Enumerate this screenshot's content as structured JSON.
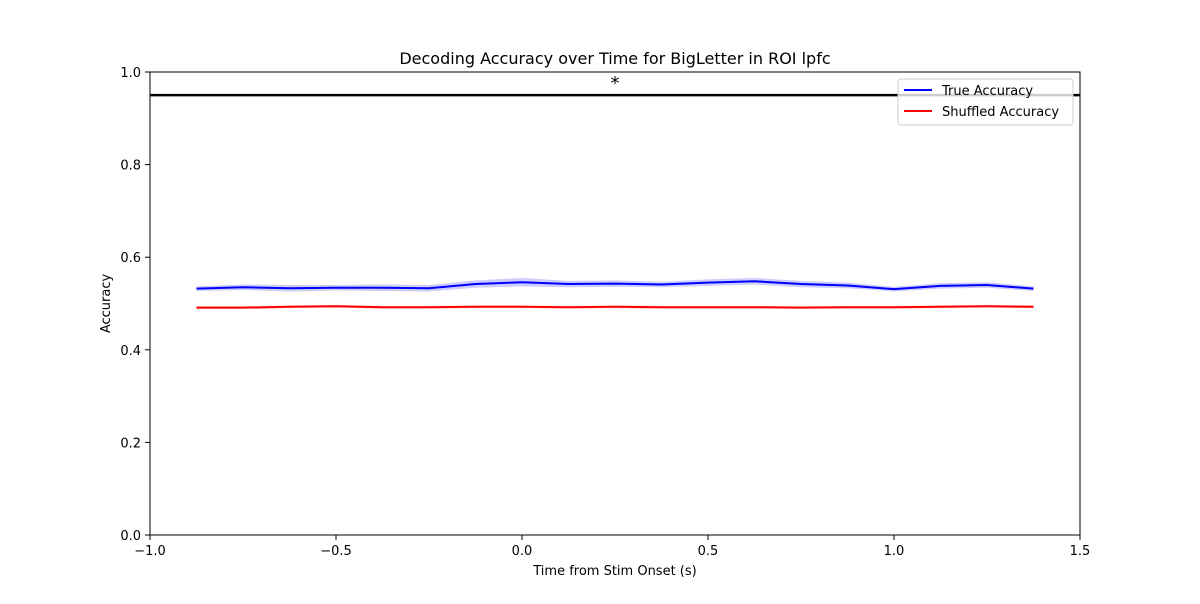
{
  "chart_data": {
    "type": "line",
    "title": "Decoding Accuracy over Time for BigLetter in ROI lpfc",
    "xlabel": "Time from Stim Onset (s)",
    "ylabel": "Accuracy",
    "xlim": [
      -1.0,
      1.5
    ],
    "ylim": [
      0.0,
      1.0
    ],
    "xticks": [
      -1.0,
      -0.5,
      0.0,
      0.5,
      1.0,
      1.5
    ],
    "xtick_labels": [
      "−1.0",
      "−0.5",
      "0.0",
      "0.5",
      "1.0",
      "1.5"
    ],
    "yticks": [
      0.0,
      0.2,
      0.4,
      0.6,
      0.8,
      1.0
    ],
    "ytick_labels": [
      "0.0",
      "0.2",
      "0.4",
      "0.6",
      "0.8",
      "1.0"
    ],
    "grid": false,
    "legend_position": "top-right",
    "x": [
      -0.875,
      -0.75,
      -0.625,
      -0.5,
      -0.375,
      -0.25,
      -0.125,
      0.0,
      0.125,
      0.25,
      0.375,
      0.5,
      0.625,
      0.75,
      0.875,
      1.0,
      1.125,
      1.25,
      1.375
    ],
    "series": [
      {
        "name": "True Accuracy",
        "color": "#0000ff",
        "values": [
          0.532,
          0.535,
          0.533,
          0.534,
          0.534,
          0.533,
          0.542,
          0.546,
          0.542,
          0.543,
          0.541,
          0.545,
          0.548,
          0.542,
          0.539,
          0.531,
          0.538,
          0.54,
          0.532
        ],
        "error": [
          0.005,
          0.006,
          0.007,
          0.006,
          0.007,
          0.007,
          0.008,
          0.009,
          0.007,
          0.007,
          0.006,
          0.007,
          0.007,
          0.007,
          0.006,
          0.005,
          0.006,
          0.006,
          0.005
        ]
      },
      {
        "name": "Shuffled Accuracy",
        "color": "#ff0000",
        "values": [
          0.491,
          0.491,
          0.493,
          0.494,
          0.492,
          0.492,
          0.493,
          0.493,
          0.492,
          0.493,
          0.492,
          0.492,
          0.492,
          0.491,
          0.492,
          0.492,
          0.493,
          0.494,
          0.493
        ],
        "error": [
          0.003,
          0.003,
          0.003,
          0.003,
          0.003,
          0.003,
          0.003,
          0.003,
          0.003,
          0.003,
          0.003,
          0.003,
          0.003,
          0.003,
          0.003,
          0.003,
          0.003,
          0.003,
          0.003
        ]
      }
    ],
    "hline": {
      "y": 0.95,
      "color": "#000000"
    },
    "annotations": [
      {
        "text": "*",
        "x": 0.25,
        "y": 0.95
      }
    ]
  }
}
